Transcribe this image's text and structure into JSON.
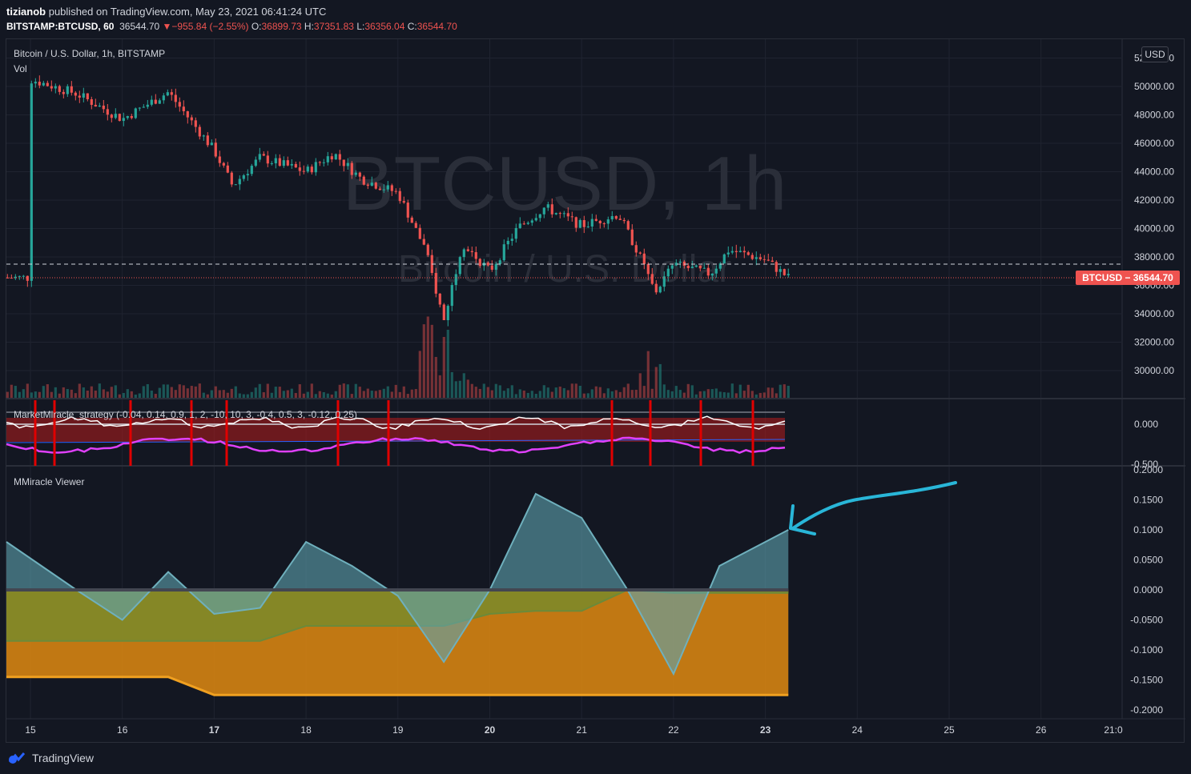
{
  "header": {
    "publisher": "tizianob",
    "published_text": " published on TradingView.com, May 23, 2021 06:41:24 UTC",
    "symbol": "BITSTAMP:BTCUSD, 60",
    "last": "36544.70",
    "change": "▼−955.84 (−2.55%)",
    "o_label": "O:",
    "o": "36899.73",
    "h_label": "H:",
    "h": "37351.83",
    "l_label": "L:",
    "l": "36356.04",
    "c_label": "C:",
    "c": "36544.70"
  },
  "main_pane": {
    "title": "Bitcoin / U.S. Dollar, 1h, BITSTAMP",
    "vol_label": "Vol",
    "watermark_big": "BTCUSD, 1h",
    "watermark_small": "Bitcoin / U.S. Dollar",
    "currency": "USD",
    "price_tag": "BTCUSD  −  36544.70",
    "y_ticks": [
      "52000.00",
      "50000.00",
      "48000.00",
      "46000.00",
      "44000.00",
      "42000.00",
      "40000.00",
      "38000.00",
      "36000.00",
      "34000.00",
      "32000.00",
      "30000.00"
    ]
  },
  "strategy_pane": {
    "title": "MarketMiracle_strategy (-0.04, 0.14, 0.9, 1, 2, -10, 10, 3, -0.4, 0.5, 3, -0.12, 0.25)",
    "y_ticks": [
      "0.000",
      "-0.500"
    ]
  },
  "viewer_pane": {
    "title": "MMiracle Viewer",
    "y_ticks": [
      "0.2000",
      "0.1500",
      "0.1000",
      "0.0500",
      "0.0000",
      "-0.0500",
      "-0.1000",
      "-0.1500",
      "-0.2000"
    ]
  },
  "x_axis": {
    "labels": [
      "15",
      "16",
      "17",
      "18",
      "19",
      "20",
      "21",
      "22",
      "23",
      "24",
      "25",
      "26",
      "21:0"
    ],
    "bold": [
      "17",
      "20",
      "23"
    ]
  },
  "footer": {
    "brand": "TradingView"
  },
  "colors": {
    "up": "#26a69a",
    "down": "#ef5350",
    "background": "#131722",
    "grid": "#1f2330",
    "arrow": "#29b6d8",
    "orange": "#f0a020"
  },
  "chart_data": [
    {
      "type": "candlestick",
      "title": "Bitcoin / U.S. Dollar, 1h, BITSTAMP",
      "ylim": [
        25000,
        53000
      ],
      "x_categories": [
        "15",
        "16",
        "17",
        "18",
        "19",
        "20",
        "21",
        "22",
        "23"
      ],
      "approx_close_path": [
        {
          "x": "15",
          "y": 50500
        },
        {
          "x": "15.5",
          "y": 49500
        },
        {
          "x": "16",
          "y": 47700
        },
        {
          "x": "16.5",
          "y": 49600
        },
        {
          "x": "17",
          "y": 45500
        },
        {
          "x": "17.2",
          "y": 43000
        },
        {
          "x": "17.5",
          "y": 45000
        },
        {
          "x": "18",
          "y": 44000
        },
        {
          "x": "18.3",
          "y": 45300
        },
        {
          "x": "18.6",
          "y": 43500
        },
        {
          "x": "19",
          "y": 42500
        },
        {
          "x": "19.3",
          "y": 38500
        },
        {
          "x": "19.5",
          "y": 33500
        },
        {
          "x": "19.7",
          "y": 39000
        },
        {
          "x": "20",
          "y": 37000
        },
        {
          "x": "20.3",
          "y": 40000
        },
        {
          "x": "20.6",
          "y": 41500
        },
        {
          "x": "21",
          "y": 40200
        },
        {
          "x": "21.4",
          "y": 41000
        },
        {
          "x": "21.6",
          "y": 38500
        },
        {
          "x": "21.8",
          "y": 35500
        },
        {
          "x": "22",
          "y": 37500
        },
        {
          "x": "22.4",
          "y": 36800
        },
        {
          "x": "22.6",
          "y": 38500
        },
        {
          "x": "23",
          "y": 37800
        },
        {
          "x": "23.25",
          "y": 36544.7
        }
      ],
      "last_price": 36544.7
    },
    {
      "type": "area",
      "title": "MMiracle Viewer",
      "ylim": [
        -0.2,
        0.2
      ],
      "x": [
        "15",
        "15.5",
        "16",
        "16.5",
        "17",
        "17.5",
        "18",
        "18.5",
        "19",
        "19.5",
        "20",
        "20.5",
        "21",
        "21.5",
        "22",
        "22.5",
        "23",
        "23.25"
      ],
      "series": [
        {
          "values": [
            0.08,
            0.0,
            -0.05,
            0.03,
            -0.04,
            -0.03,
            0.08,
            0.04,
            -0.01,
            -0.12,
            0.0,
            0.16,
            0.12,
            0.0,
            -0.14,
            0.04,
            0.08,
            0.1
          ]
        },
        {
          "values": [
            -0.085,
            -0.085,
            -0.085,
            -0.085,
            -0.085,
            -0.085,
            -0.06,
            -0.06,
            -0.06,
            -0.06,
            -0.04,
            -0.035,
            -0.035,
            0.0,
            -0.005,
            -0.005,
            -0.005,
            -0.005
          ]
        },
        {
          "values": [
            -0.145,
            -0.145,
            -0.145,
            -0.145,
            -0.175,
            -0.175,
            -0.175,
            -0.175,
            -0.175,
            -0.175,
            -0.175,
            -0.175,
            -0.175,
            -0.175,
            -0.175,
            -0.175,
            -0.175,
            -0.175
          ]
        }
      ]
    }
  ]
}
